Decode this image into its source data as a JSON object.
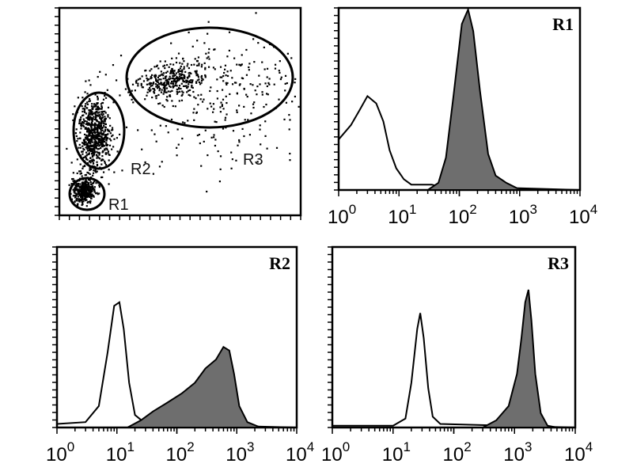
{
  "chart_data": [
    {
      "type": "scatter",
      "panel": "dot-plot",
      "gates": [
        {
          "name": "R1",
          "label": "R1"
        },
        {
          "name": "R2",
          "label": "R2"
        },
        {
          "name": "R3",
          "label": "R3"
        }
      ],
      "grid": false
    },
    {
      "type": "area",
      "panel": "histogram-R1",
      "title": "R1",
      "x_scale": "log",
      "xlim": [
        1,
        10000
      ],
      "x_tick_labels": [
        {
          "base": "10",
          "exp": "0"
        },
        {
          "base": "10",
          "exp": "1"
        },
        {
          "base": "10",
          "exp": "2"
        },
        {
          "base": "10",
          "exp": "3"
        },
        {
          "base": "10",
          "exp": "4"
        }
      ],
      "series": [
        {
          "style": "open",
          "points": [
            [
              1,
              0.28
            ],
            [
              1.6,
              0.36
            ],
            [
              2.2,
              0.44
            ],
            [
              3,
              0.52
            ],
            [
              4.2,
              0.48
            ],
            [
              5.5,
              0.38
            ],
            [
              7,
              0.22
            ],
            [
              9,
              0.12
            ],
            [
              12,
              0.06
            ],
            [
              16,
              0.03
            ],
            [
              25,
              0.03
            ],
            [
              35,
              0.03
            ],
            [
              60,
              0.01
            ],
            [
              200,
              0.01
            ],
            [
              1000,
              0.01
            ],
            [
              10000,
              0.0
            ]
          ]
        },
        {
          "style": "filled",
          "color": "#6e6e6e",
          "points": [
            [
              30,
              0.0
            ],
            [
              45,
              0.04
            ],
            [
              60,
              0.18
            ],
            [
              80,
              0.52
            ],
            [
              110,
              0.92
            ],
            [
              140,
              1.0
            ],
            [
              170,
              0.88
            ],
            [
              220,
              0.55
            ],
            [
              300,
              0.2
            ],
            [
              400,
              0.08
            ],
            [
              600,
              0.04
            ],
            [
              900,
              0.01
            ],
            [
              2000,
              0.0
            ]
          ]
        }
      ],
      "grid": false
    },
    {
      "type": "area",
      "panel": "histogram-R2",
      "title": "R2",
      "x_scale": "log",
      "xlim": [
        1,
        10000
      ],
      "x_tick_labels": [
        {
          "base": "10",
          "exp": "0"
        },
        {
          "base": "10",
          "exp": "1"
        },
        {
          "base": "10",
          "exp": "2"
        },
        {
          "base": "10",
          "exp": "3"
        },
        {
          "base": "10",
          "exp": "4"
        }
      ],
      "series": [
        {
          "style": "open",
          "points": [
            [
              1,
              0.02
            ],
            [
              3,
              0.03
            ],
            [
              5,
              0.12
            ],
            [
              7,
              0.42
            ],
            [
              9,
              0.68
            ],
            [
              11,
              0.7
            ],
            [
              13,
              0.55
            ],
            [
              16,
              0.25
            ],
            [
              20,
              0.07
            ],
            [
              28,
              0.03
            ],
            [
              40,
              0.02
            ],
            [
              10000,
              0.0
            ]
          ]
        },
        {
          "style": "filled",
          "color": "#6e6e6e",
          "points": [
            [
              15,
              0.0
            ],
            [
              25,
              0.04
            ],
            [
              40,
              0.09
            ],
            [
              70,
              0.14
            ],
            [
              120,
              0.19
            ],
            [
              200,
              0.25
            ],
            [
              300,
              0.33
            ],
            [
              450,
              0.38
            ],
            [
              600,
              0.45
            ],
            [
              750,
              0.43
            ],
            [
              900,
              0.3
            ],
            [
              1100,
              0.12
            ],
            [
              1500,
              0.03
            ],
            [
              2500,
              0.0
            ]
          ]
        }
      ],
      "grid": false
    },
    {
      "type": "area",
      "panel": "histogram-R3",
      "title": "R3",
      "x_scale": "log",
      "xlim": [
        1,
        10000
      ],
      "x_tick_labels": [
        {
          "base": "10",
          "exp": "0"
        },
        {
          "base": "10",
          "exp": "1"
        },
        {
          "base": "10",
          "exp": "2"
        },
        {
          "base": "10",
          "exp": "3"
        },
        {
          "base": "10",
          "exp": "4"
        }
      ],
      "series": [
        {
          "style": "open",
          "points": [
            [
              1,
              0.01
            ],
            [
              10,
              0.01
            ],
            [
              16,
              0.05
            ],
            [
              20,
              0.25
            ],
            [
              25,
              0.55
            ],
            [
              28,
              0.64
            ],
            [
              32,
              0.5
            ],
            [
              38,
              0.22
            ],
            [
              45,
              0.06
            ],
            [
              60,
              0.02
            ],
            [
              10000,
              0.0
            ]
          ]
        },
        {
          "style": "filled",
          "color": "#6e6e6e",
          "points": [
            [
              300,
              0.0
            ],
            [
              500,
              0.04
            ],
            [
              800,
              0.12
            ],
            [
              1100,
              0.3
            ],
            [
              1300,
              0.5
            ],
            [
              1500,
              0.7
            ],
            [
              1700,
              0.77
            ],
            [
              1900,
              0.6
            ],
            [
              2200,
              0.3
            ],
            [
              2700,
              0.08
            ],
            [
              3500,
              0.01
            ],
            [
              5000,
              0.0
            ]
          ]
        }
      ],
      "grid": false
    }
  ]
}
